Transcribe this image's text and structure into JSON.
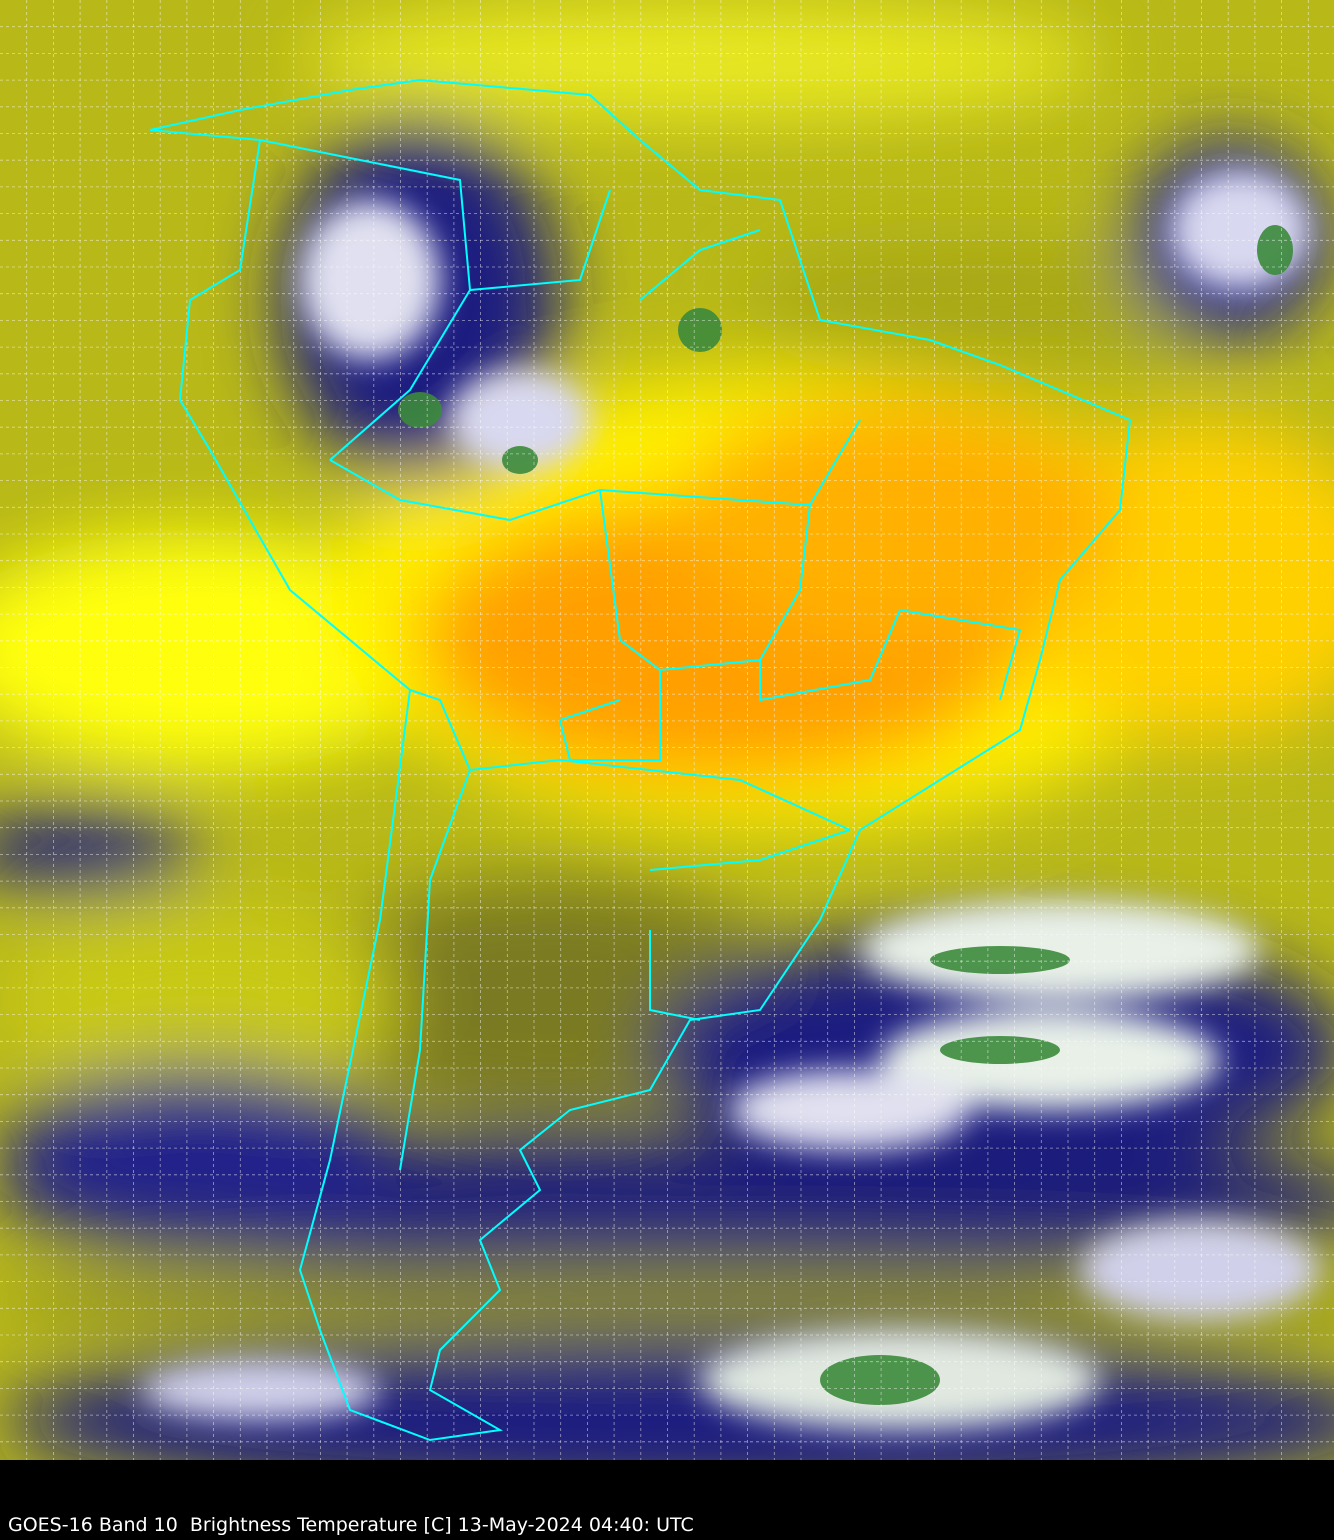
{
  "caption": "GOES-16 Band 10  Brightness Temperature [C] 13-May-2024 04:40: UTC",
  "colors": {
    "warm": "#ffa000",
    "mid": "#ffff00",
    "cool": "#9c9c10",
    "cold": "#1a1a80",
    "coldest_cloud": "#ffffff",
    "deep_convection": "#3c8a3c",
    "borders": "#00ffff",
    "grid": "#ffffff"
  },
  "layers": [
    "brightness-temperature",
    "lat-lon-grid",
    "country-borders"
  ]
}
